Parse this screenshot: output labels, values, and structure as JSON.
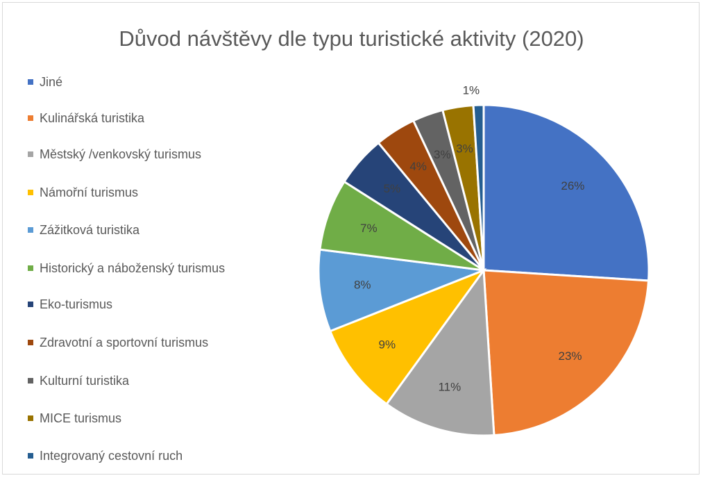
{
  "chart_data": {
    "type": "pie",
    "title": "Důvod návštěvy dle typu turistické aktivity (2020)",
    "categories": [
      "Jiné",
      "Kulinářská turistika",
      "Městský /venkovský turismus",
      "Námořní turismus",
      "Zážitková turistika",
      "Historický a náboženský turismus",
      "Eko-turismus",
      "Zdravotní a sportovní turismus",
      "Kulturní turistika",
      "MICE turismus",
      "Integrovaný cestovní ruch"
    ],
    "values": [
      26,
      23,
      11,
      9,
      8,
      7,
      5,
      4,
      3,
      3,
      1
    ],
    "value_labels": [
      "26%",
      "23%",
      "11%",
      "9%",
      "8%",
      "7%",
      "5%",
      "4%",
      "3%",
      "3%",
      "1%"
    ],
    "colors": [
      "#4472c4",
      "#ed7d31",
      "#a5a5a5",
      "#ffc000",
      "#5b9bd5",
      "#70ad47",
      "#264478",
      "#9e480e",
      "#636363",
      "#997300",
      "#255e91"
    ],
    "legend": "left"
  }
}
